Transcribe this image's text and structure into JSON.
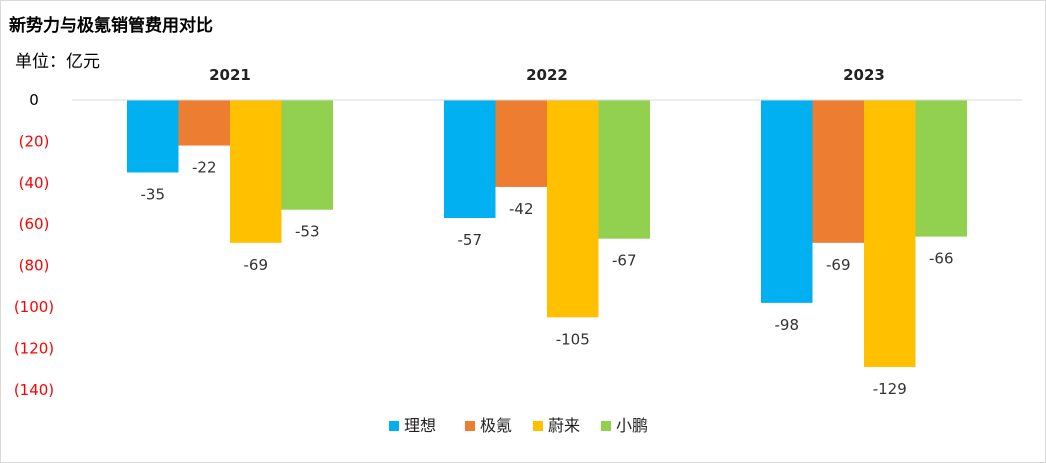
{
  "title": "新势力与极氪销管费用对比",
  "unit_label": "单位：亿元",
  "chart_data": {
    "type": "bar",
    "title": "新势力与极氪销管费用对比",
    "ylabel": "单位：亿元",
    "categories": [
      "2021",
      "2022",
      "2023"
    ],
    "series": [
      {
        "name": "理想",
        "values": [
          -35,
          -57,
          -98
        ],
        "color": "#00b0f0"
      },
      {
        "name": "极氪",
        "values": [
          -22,
          -42,
          -69
        ],
        "color": "#ed7d31"
      },
      {
        "name": "蔚来",
        "values": [
          -69,
          -105,
          -129
        ],
        "color": "#ffc000"
      },
      {
        "name": "小鹏",
        "values": [
          -53,
          -67,
          -66
        ],
        "color": "#92d050"
      }
    ],
    "yticks": [
      0,
      -20,
      -40,
      -60,
      -80,
      -100,
      -120,
      -140
    ],
    "ytick_labels": [
      "0",
      "(20)",
      "(40)",
      "(60)",
      "(80)",
      "(100)",
      "(120)",
      "(140)"
    ],
    "ytick_colors": [
      "#000000",
      "#ff0000",
      "#ff0000",
      "#ff0000",
      "#ff0000",
      "#ff0000",
      "#ff0000",
      "#ff0000"
    ],
    "ylim": [
      -140,
      0
    ],
    "category_label_position": "top",
    "grid": false,
    "legend": "bottom-center"
  }
}
